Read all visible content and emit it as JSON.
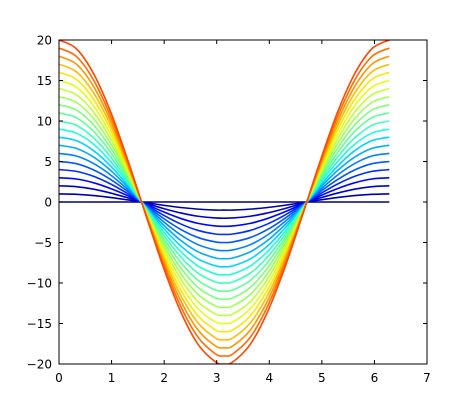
{
  "chart_data": {
    "type": "line",
    "title": "",
    "xlabel": "",
    "ylabel": "",
    "xlim": [
      0,
      7
    ],
    "ylim": [
      -20,
      20
    ],
    "xticks": [
      0,
      1,
      2,
      3,
      4,
      5,
      6,
      7
    ],
    "yticks": [
      -20,
      -15,
      -10,
      -5,
      0,
      5,
      10,
      15,
      20
    ],
    "xtick_labels": [
      "0",
      "1",
      "2",
      "3",
      "4",
      "5",
      "6",
      "7"
    ],
    "ytick_labels": [
      "−20",
      "−15",
      "−10",
      "−5",
      "0",
      "5",
      "10",
      "15",
      "20"
    ],
    "grid": false,
    "legend": "none",
    "colormap": "jet",
    "x": [
      0,
      0.3307,
      0.6614,
      0.9921,
      1.3228,
      1.6535,
      1.9842,
      2.3149,
      2.6456,
      2.9763,
      3.1416,
      3.307,
      3.6377,
      3.9684,
      4.2991,
      4.6298,
      4.9605,
      5.2912,
      5.6219,
      5.9526,
      6.2832
    ],
    "series": [
      {
        "color": "#00007f",
        "values": [
          0,
          0,
          0,
          0,
          0,
          0,
          0,
          0,
          0,
          0,
          0,
          0,
          0,
          0,
          0,
          0,
          0,
          0,
          0,
          0,
          0
        ]
      },
      {
        "color": "#0000a8",
        "values": [
          1.0,
          0.95,
          0.79,
          0.55,
          0.25,
          -0.08,
          -0.4,
          -0.68,
          -0.88,
          -0.99,
          -1.0,
          -0.99,
          -0.88,
          -0.68,
          -0.4,
          -0.08,
          0.25,
          0.55,
          0.79,
          0.95,
          1.0
        ]
      },
      {
        "color": "#0000d5",
        "values": [
          2.0,
          1.89,
          1.58,
          1.09,
          0.49,
          -0.16,
          -0.8,
          -1.35,
          -1.76,
          -1.97,
          -2.0,
          -1.97,
          -1.76,
          -1.35,
          -0.8,
          -0.16,
          0.49,
          1.09,
          1.58,
          1.89,
          2.0
        ]
      },
      {
        "color": "#0004ff",
        "values": [
          3.0,
          2.84,
          2.37,
          1.64,
          0.74,
          -0.25,
          -1.21,
          -2.03,
          -2.64,
          -2.96,
          -3.0,
          -2.96,
          -2.64,
          -2.03,
          -1.21,
          -0.25,
          0.74,
          1.64,
          2.37,
          2.84,
          3.0
        ]
      },
      {
        "color": "#002cff",
        "values": [
          4.0,
          3.78,
          3.16,
          2.19,
          0.98,
          -0.33,
          -1.61,
          -2.71,
          -3.51,
          -3.95,
          -4.0,
          -3.95,
          -3.51,
          -2.71,
          -1.61,
          -0.33,
          0.98,
          2.19,
          3.16,
          3.78,
          4.0
        ]
      },
      {
        "color": "#0058ff",
        "values": [
          5.0,
          4.73,
          3.95,
          2.74,
          1.23,
          -0.41,
          -2.01,
          -3.39,
          -4.39,
          -4.93,
          -5.0,
          -4.93,
          -4.39,
          -3.39,
          -2.01,
          -0.41,
          1.23,
          2.74,
          3.95,
          4.73,
          5.0
        ]
      },
      {
        "color": "#0080ff",
        "values": [
          6.0,
          5.68,
          4.74,
          3.29,
          1.47,
          -0.49,
          -2.41,
          -4.06,
          -5.27,
          -5.92,
          -6.0,
          -5.92,
          -5.27,
          -4.06,
          -2.41,
          -0.49,
          1.47,
          3.29,
          4.74,
          5.68,
          6.0
        ]
      },
      {
        "color": "#00acff",
        "values": [
          7.0,
          6.62,
          5.53,
          3.84,
          1.72,
          -0.58,
          -2.81,
          -4.74,
          -6.15,
          -6.91,
          -7.0,
          -6.91,
          -6.15,
          -4.74,
          -2.81,
          -0.58,
          1.72,
          3.84,
          5.53,
          6.62,
          7.0
        ]
      },
      {
        "color": "#00d4ff",
        "values": [
          8.0,
          7.57,
          6.32,
          4.38,
          1.96,
          -0.66,
          -3.21,
          -5.42,
          -7.03,
          -7.89,
          -8.0,
          -7.89,
          -7.03,
          -5.42,
          -3.21,
          -0.66,
          1.96,
          4.38,
          6.32,
          7.57,
          8.0
        ]
      },
      {
        "color": "#1fffd7",
        "values": [
          9.0,
          8.51,
          7.11,
          4.93,
          2.21,
          -0.74,
          -3.62,
          -6.1,
          -7.91,
          -8.88,
          -9.0,
          -8.88,
          -7.91,
          -6.1,
          -3.62,
          -0.74,
          2.21,
          4.93,
          7.11,
          8.51,
          9.0
        ]
      },
      {
        "color": "#40ffb7",
        "values": [
          10.0,
          9.46,
          7.9,
          5.48,
          2.45,
          -0.82,
          -4.02,
          -6.77,
          -8.79,
          -9.87,
          -10.0,
          -9.87,
          -8.79,
          -6.77,
          -4.02,
          -0.82,
          2.45,
          5.48,
          7.9,
          9.46,
          10.0
        ]
      },
      {
        "color": "#60ff96",
        "values": [
          11.0,
          10.41,
          8.69,
          6.03,
          2.7,
          -0.91,
          -4.42,
          -7.45,
          -9.67,
          -10.86,
          -11.0,
          -10.86,
          -9.67,
          -7.45,
          -4.42,
          -0.91,
          2.7,
          6.03,
          8.69,
          10.41,
          11.0
        ]
      },
      {
        "color": "#80ff77",
        "values": [
          12.0,
          11.35,
          9.48,
          6.58,
          2.94,
          -0.99,
          -4.82,
          -8.13,
          -10.55,
          -11.84,
          -12.0,
          -11.84,
          -10.55,
          -8.13,
          -4.82,
          -0.99,
          2.94,
          6.58,
          9.48,
          11.35,
          12.0
        ]
      },
      {
        "color": "#a0ff57",
        "values": [
          13.0,
          12.3,
          10.27,
          7.12,
          3.19,
          -1.07,
          -5.22,
          -8.81,
          -11.42,
          -12.83,
          -13.0,
          -12.83,
          -11.42,
          -8.81,
          -5.22,
          -1.07,
          3.19,
          7.12,
          10.27,
          12.3,
          13.0
        ]
      },
      {
        "color": "#c0ff37",
        "values": [
          14.0,
          13.24,
          11.06,
          7.67,
          3.43,
          -1.15,
          -5.62,
          -9.48,
          -12.3,
          -13.82,
          -14.0,
          -13.82,
          -12.3,
          -9.48,
          -5.62,
          -1.15,
          3.43,
          7.67,
          11.06,
          13.24,
          14.0
        ]
      },
      {
        "color": "#e0ff17",
        "values": [
          15.0,
          14.19,
          11.85,
          8.22,
          3.68,
          -1.24,
          -6.03,
          -10.16,
          -13.18,
          -14.81,
          -15.0,
          -14.81,
          -13.18,
          -10.16,
          -6.03,
          -1.24,
          3.68,
          8.22,
          11.85,
          14.19,
          15.0
        ]
      },
      {
        "color": "#ffe500",
        "values": [
          16.0,
          15.14,
          12.64,
          8.77,
          3.92,
          -1.32,
          -6.43,
          -10.84,
          -14.06,
          -15.79,
          -16.0,
          -15.79,
          -14.06,
          -10.84,
          -6.43,
          -1.32,
          3.92,
          8.77,
          12.64,
          15.14,
          16.0
        ]
      },
      {
        "color": "#ffbd00",
        "values": [
          17.0,
          16.08,
          13.43,
          9.32,
          4.17,
          -1.4,
          -6.83,
          -11.52,
          -14.94,
          -16.78,
          -17.0,
          -16.78,
          -14.94,
          -11.52,
          -6.83,
          -1.4,
          4.17,
          9.32,
          13.43,
          16.08,
          17.0
        ]
      },
      {
        "color": "#ff9400",
        "values": [
          18.0,
          17.03,
          14.22,
          9.86,
          4.41,
          -1.49,
          -7.23,
          -12.19,
          -15.82,
          -17.77,
          -18.0,
          -17.77,
          -15.82,
          -12.19,
          -7.23,
          -1.49,
          4.41,
          9.86,
          14.22,
          17.03,
          18.0
        ]
      },
      {
        "color": "#ff6c00",
        "values": [
          19.0,
          17.97,
          15.01,
          10.41,
          4.66,
          -1.57,
          -7.63,
          -12.87,
          -16.7,
          -18.75,
          -19.0,
          -18.75,
          -16.7,
          -12.87,
          -7.63,
          -1.57,
          4.66,
          10.41,
          15.01,
          17.97,
          19.0
        ]
      },
      {
        "color": "#ff4800",
        "values": [
          20.0,
          18.92,
          15.8,
          10.96,
          4.9,
          -1.65,
          -8.04,
          -13.55,
          -17.58,
          -19.74,
          -20.0,
          -19.74,
          -17.58,
          -13.55,
          -8.04,
          -1.65,
          4.9,
          10.96,
          15.8,
          18.92,
          20.0
        ]
      }
    ]
  }
}
